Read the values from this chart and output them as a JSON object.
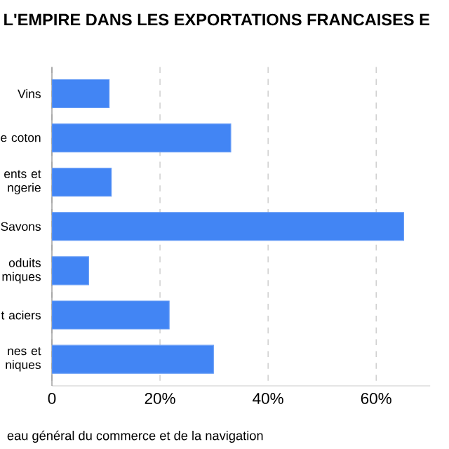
{
  "chart_data": {
    "type": "bar",
    "orientation": "horizontal",
    "title": "L'EMPIRE DANS LES EXPORTATIONS FRANCAISES E",
    "categories": [
      "Vins",
      "e coton",
      "ents et ngerie",
      "Savons",
      "oduits miques",
      "t aciers",
      "nes et niques"
    ],
    "values": [
      10.6,
      33.1,
      11.0,
      65.1,
      6.8,
      21.7,
      29.9
    ],
    "color": "#4285f4",
    "xlim": [
      0,
      70
    ],
    "xticks": [
      {
        "value": 0,
        "label": "0"
      },
      {
        "value": 20,
        "label": "20%"
      },
      {
        "value": 40,
        "label": "40%"
      },
      {
        "value": 60,
        "label": "60%"
      }
    ],
    "grid": "x",
    "annotations": [
      "eau général du commerce et de la navigation"
    ]
  }
}
